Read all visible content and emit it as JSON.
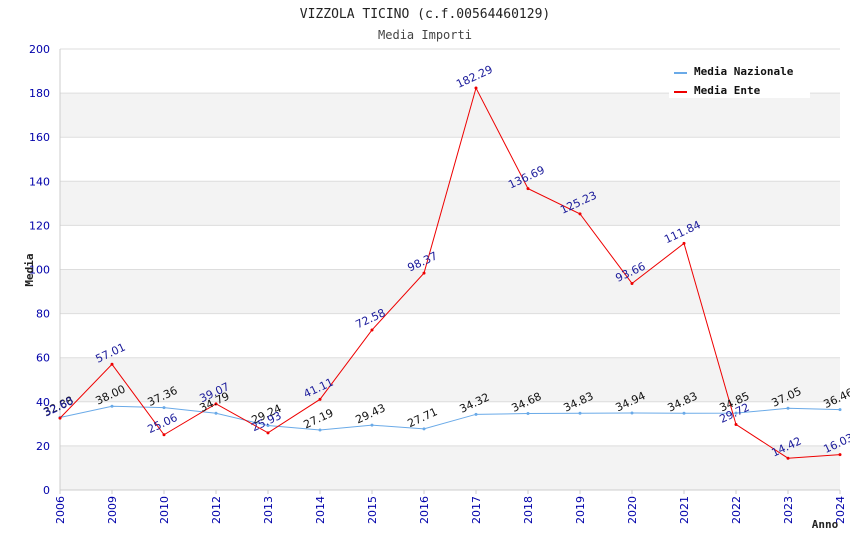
{
  "chart_data": {
    "type": "line",
    "title": "VIZZOLA TICINO (c.f.00564460129)",
    "subtitle": "Media Importi",
    "xlabel": "Anno",
    "ylabel": "Media",
    "categories": [
      "2006",
      "2009",
      "2010",
      "2012",
      "2013",
      "2014",
      "2015",
      "2016",
      "2017",
      "2018",
      "2019",
      "2020",
      "2021",
      "2022",
      "2023",
      "2024"
    ],
    "ylim": [
      0,
      200
    ],
    "yticks": [
      0,
      20,
      40,
      60,
      80,
      100,
      120,
      140,
      160,
      180,
      200
    ],
    "grid": true,
    "legend_position": "top-right",
    "series": [
      {
        "name": "Media Nazionale",
        "color": "#6aaae8",
        "values": [
          32.88,
          38.0,
          37.36,
          34.79,
          29.24,
          27.19,
          29.43,
          27.71,
          34.32,
          34.68,
          34.83,
          34.94,
          34.83,
          34.85,
          37.05,
          36.46
        ],
        "labels": [
          "32.88",
          "38.00",
          "37.36",
          "34.79",
          "29.24",
          "27.19",
          "29.43",
          "27.71",
          "34.32",
          "34.68",
          "34.83",
          "34.94",
          "34.83",
          "34.85",
          "37.05",
          "36.46"
        ]
      },
      {
        "name": "Media Ente",
        "color": "#ee0000",
        "values": [
          32.6,
          57.01,
          25.06,
          39.07,
          25.93,
          41.11,
          72.58,
          98.37,
          182.29,
          136.69,
          125.23,
          93.66,
          111.84,
          29.72,
          14.42,
          16.03
        ],
        "labels": [
          "32.60",
          "57.01",
          "25.06",
          "39.07",
          "25.93",
          "41.11",
          "72.58",
          "98.37",
          "182.29",
          "136.69",
          "125.23",
          "93.66",
          "111.84",
          "29.72",
          "14.42",
          "16.03"
        ]
      }
    ]
  }
}
